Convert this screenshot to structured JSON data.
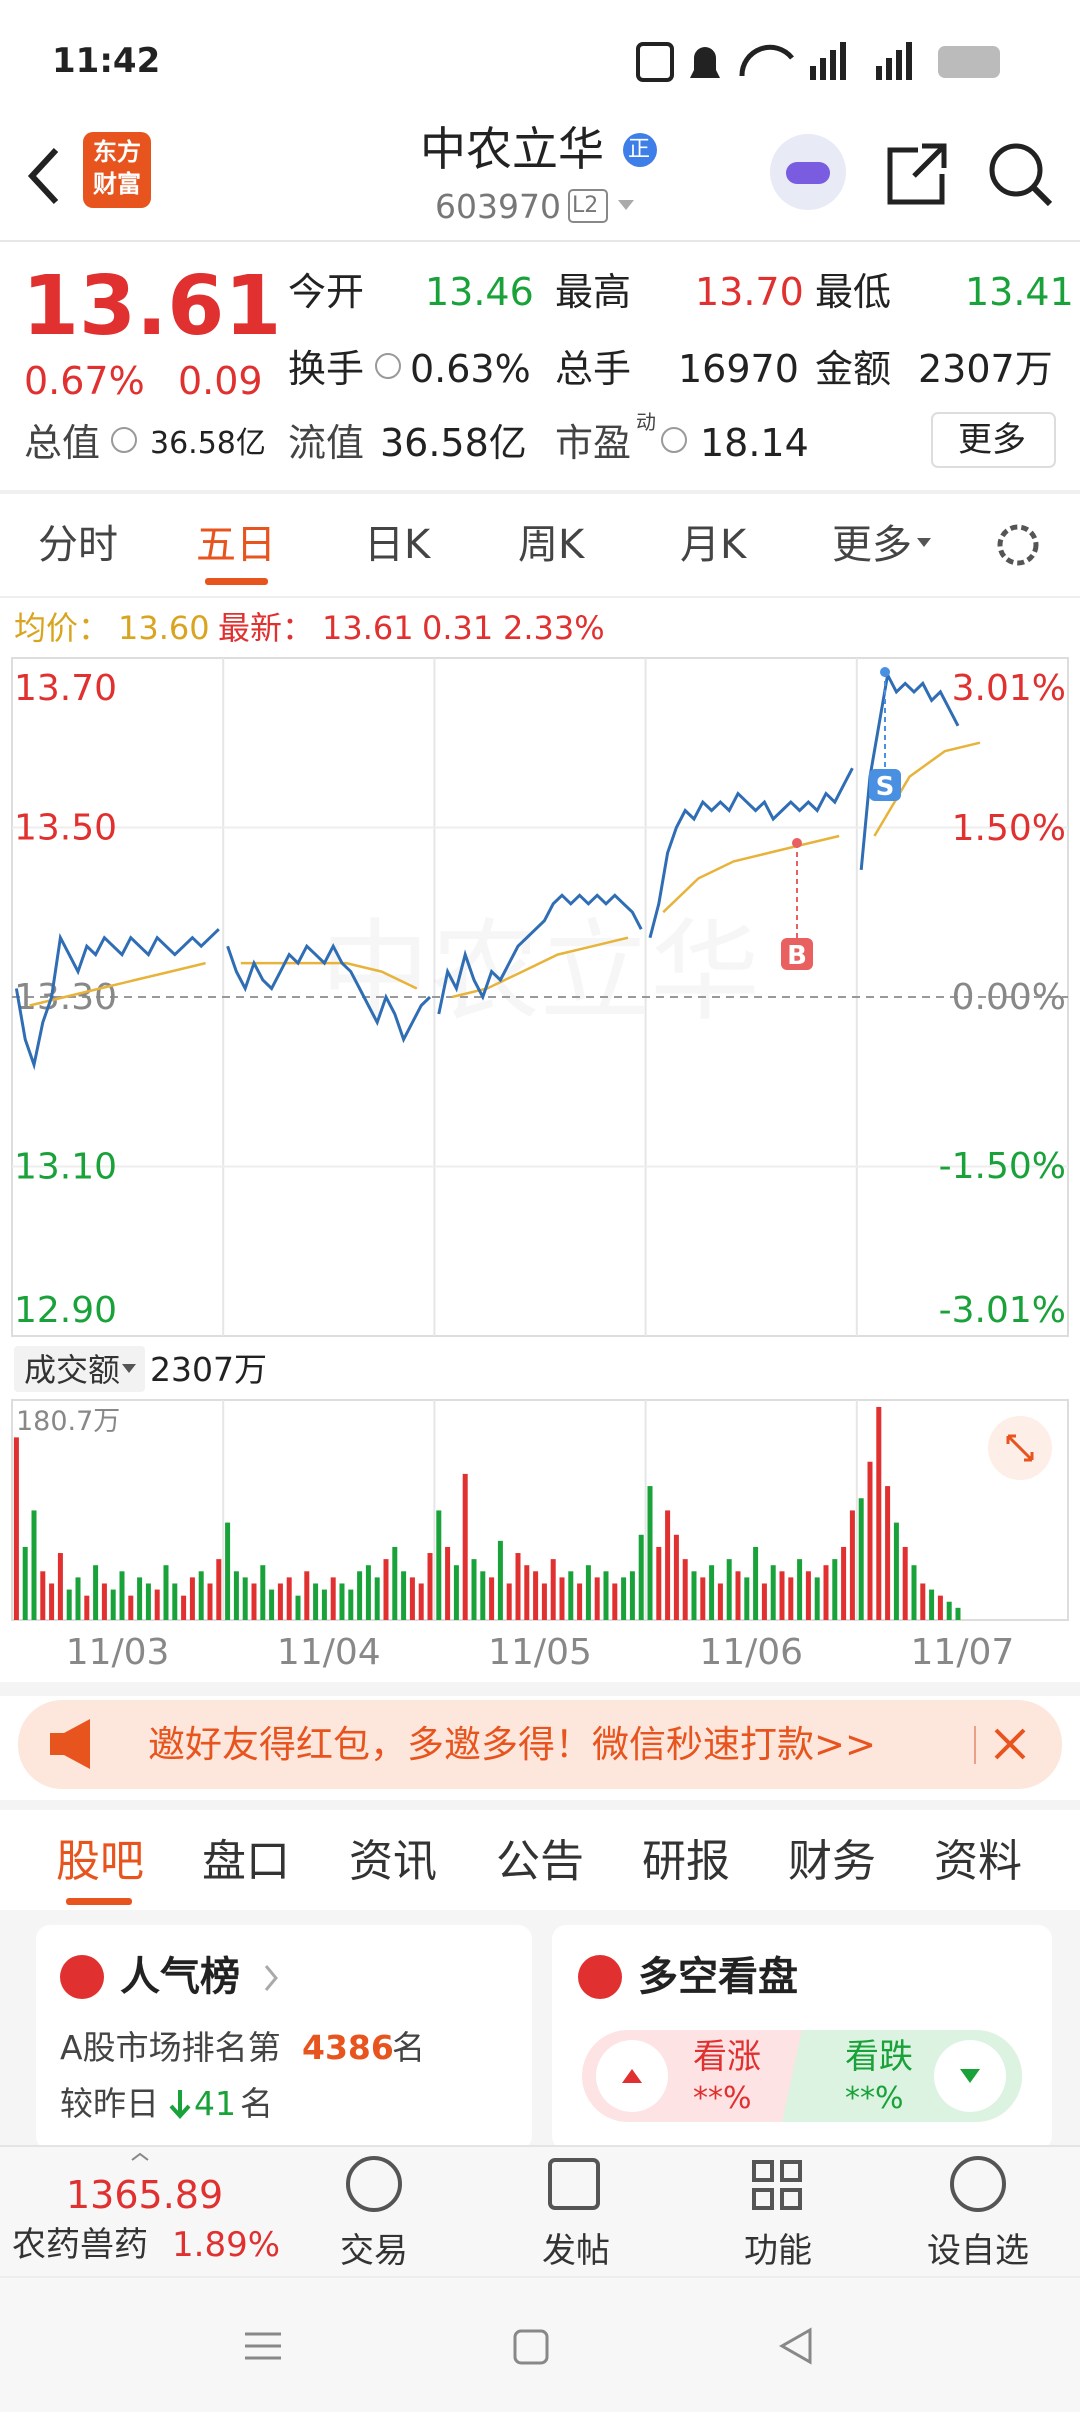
{
  "status_bar": {
    "time": "11:42",
    "battery": "6"
  },
  "header": {
    "logo": [
      "东方",
      "财富"
    ],
    "name": "中农立华",
    "badge": "正",
    "code": "603970",
    "level": "L2"
  },
  "quote": {
    "price": "13.61",
    "change_pct": "0.67%",
    "change": "0.09",
    "fields": [
      [
        "今开",
        "13.46"
      ],
      [
        "最高",
        "13.70"
      ],
      [
        "最低",
        "13.41"
      ],
      [
        "换手",
        "0.63%"
      ],
      [
        "总手",
        "16970"
      ],
      [
        "金额",
        "2307万"
      ],
      [
        "总值",
        "36.58亿"
      ],
      [
        "流值",
        "36.58亿"
      ],
      [
        "市盈",
        "18.14"
      ]
    ],
    "pe_tag": "动",
    "more": "更多"
  },
  "chart_tabs": [
    "分时",
    "五日",
    "日K",
    "周K",
    "月K",
    "更多"
  ],
  "chart_info": {
    "avg_label": "均价：",
    "avg": "13.60",
    "last_label": "最新：",
    "last": "13.61",
    "change": "0.31",
    "change_pct": "2.33%"
  },
  "chart_data": {
    "type": "line",
    "categories": [
      "11/03",
      "11/04",
      "11/05",
      "11/06",
      "11/07"
    ],
    "ylim": [
      12.9,
      13.7
    ],
    "yticks": [
      {
        "value": 13.7,
        "label": "13.70"
      },
      {
        "value": 13.5,
        "label": "13.50"
      },
      {
        "value": 13.3,
        "label": "13.30"
      },
      {
        "value": 13.1,
        "label": "13.10"
      },
      {
        "value": 12.9,
        "label": "12.90"
      }
    ],
    "y2lim": [
      -3.01,
      3.01
    ],
    "y2ticks": [
      {
        "value": 3.01,
        "label": "3.01%"
      },
      {
        "value": 1.5,
        "label": "1.50%"
      },
      {
        "value": 0,
        "label": "0.00%"
      },
      {
        "value": -1.5,
        "label": "-1.50%"
      },
      {
        "value": -3.01,
        "label": "-3.01%"
      }
    ],
    "price_color": "#2f6db5",
    "avg_color": "#e8b33a",
    "up_color": "#e0302f",
    "down_color": "#1aa23a",
    "days": [
      {
        "price": [
          13.31,
          13.25,
          13.22,
          13.27,
          13.3,
          13.37,
          13.35,
          13.33,
          13.36,
          13.35,
          13.37,
          13.36,
          13.35,
          13.37,
          13.36,
          13.35,
          13.37,
          13.36,
          13.35,
          13.36,
          13.37,
          13.36,
          13.37,
          13.38
        ],
        "avg": [
          13.29,
          13.3,
          13.31,
          13.32,
          13.33,
          13.34
        ],
        "volume": [
          150,
          60,
          90,
          40,
          30,
          55,
          25,
          35,
          20,
          45,
          30,
          25,
          40,
          20,
          35,
          30,
          25,
          45,
          30,
          20,
          35,
          40,
          30,
          50
        ]
      },
      {
        "price": [
          13.36,
          13.33,
          13.31,
          13.34,
          13.32,
          13.31,
          13.33,
          13.35,
          13.34,
          13.36,
          13.35,
          13.34,
          13.36,
          13.34,
          13.33,
          13.31,
          13.29,
          13.27,
          13.3,
          13.28,
          13.25,
          13.27,
          13.29,
          13.3
        ],
        "avg": [
          13.34,
          13.34,
          13.34,
          13.34,
          13.33,
          13.31
        ],
        "volume": [
          80,
          40,
          35,
          30,
          45,
          25,
          30,
          35,
          20,
          40,
          30,
          25,
          35,
          30,
          25,
          40,
          45,
          35,
          50,
          60,
          40,
          35,
          30,
          55
        ]
      },
      {
        "price": [
          13.28,
          13.33,
          13.31,
          13.35,
          13.32,
          13.3,
          13.33,
          13.32,
          13.34,
          13.36,
          13.37,
          13.38,
          13.39,
          13.41,
          13.42,
          13.41,
          13.42,
          13.41,
          13.42,
          13.41,
          13.42,
          13.41,
          13.4,
          13.38
        ],
        "avg": [
          13.3,
          13.31,
          13.33,
          13.35,
          13.36,
          13.37
        ],
        "volume": [
          90,
          60,
          45,
          120,
          50,
          40,
          35,
          65,
          30,
          55,
          45,
          40,
          30,
          50,
          35,
          40,
          30,
          45,
          35,
          40,
          30,
          35,
          40,
          70
        ]
      },
      {
        "price": [
          13.37,
          13.41,
          13.47,
          13.5,
          13.52,
          13.51,
          13.53,
          13.52,
          13.53,
          13.52,
          13.54,
          13.53,
          13.52,
          13.53,
          13.51,
          13.52,
          13.53,
          13.52,
          13.53,
          13.52,
          13.54,
          13.53,
          13.55,
          13.57
        ],
        "avg": [
          13.4,
          13.44,
          13.46,
          13.47,
          13.48,
          13.49
        ],
        "volume": [
          110,
          60,
          90,
          70,
          50,
          40,
          35,
          45,
          30,
          50,
          40,
          35,
          60,
          30,
          45,
          40,
          35,
          50,
          40,
          35,
          45,
          50,
          60,
          90
        ]
      },
      {
        "price": [
          13.45,
          13.56,
          13.62,
          13.68,
          13.66,
          13.67,
          13.66,
          13.67,
          13.65,
          13.66,
          13.64,
          13.62
        ],
        "avg": [
          13.49,
          13.56,
          13.59,
          13.6
        ],
        "volume": [
          100,
          130,
          175,
          110,
          80,
          60,
          45,
          30,
          25,
          20,
          15,
          10
        ]
      }
    ],
    "trade_marks": [
      "B",
      "S"
    ],
    "volume_label": "成交额",
    "volume_total": "2307万",
    "volume_ylim": [
      0,
      180.7
    ],
    "volume_yticks": [
      {
        "value": 180.7,
        "label": "180.7万"
      }
    ]
  },
  "banner": "邀好友得红包，多邀多得！微信秒速打款>>",
  "section_tabs": [
    "股吧",
    "盘口",
    "资讯",
    "公告",
    "研报",
    "财务",
    "资料"
  ],
  "cards": {
    "popularity": {
      "title": "人气榜",
      "rank_prefix": "A股市场排名第",
      "rank": "4386",
      "rank_suffix": "名",
      "change_prefix": "较昨日",
      "change": "41",
      "change_suffix": "名"
    },
    "sentiment": {
      "title": "多空看盘",
      "up": "看涨",
      "up_value": "**%",
      "down": "看跌",
      "down_value": "**%"
    }
  },
  "bottom_bar": {
    "index_value": "1365.89",
    "sector": "农药兽药",
    "sector_change": "1.89%",
    "buttons": [
      "交易",
      "发帖",
      "功能",
      "设自选"
    ]
  }
}
